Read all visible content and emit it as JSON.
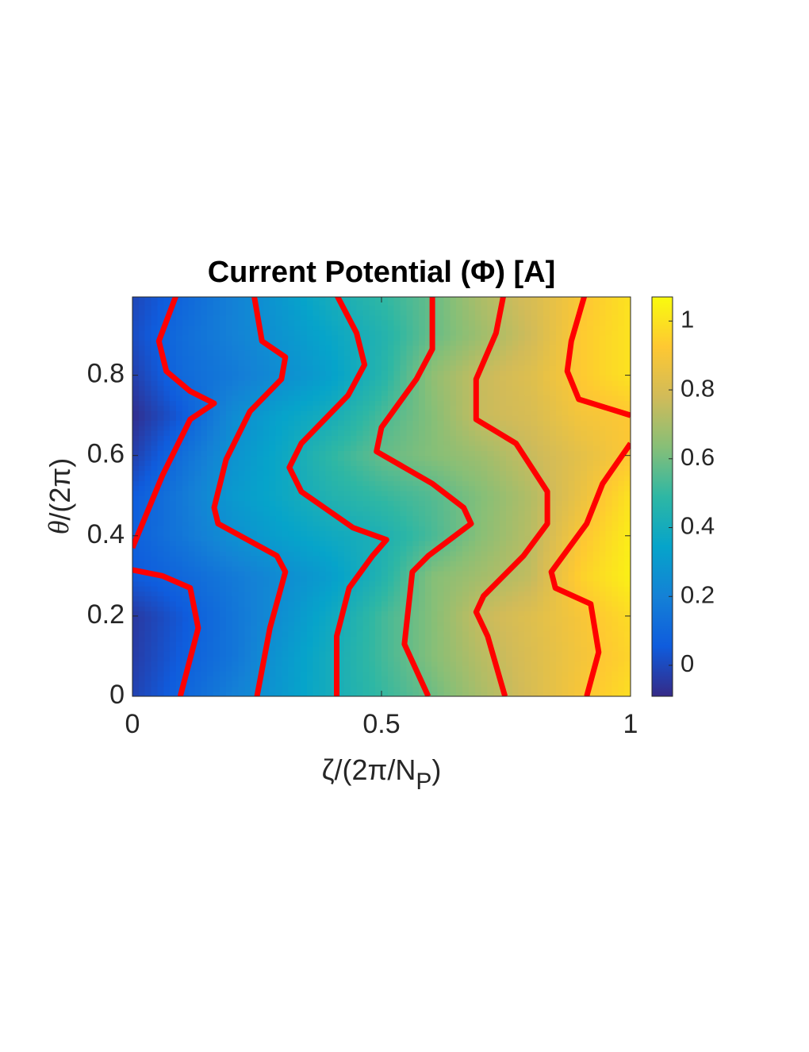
{
  "chart_data": {
    "type": "contour",
    "title": "Current Potential (Φ) [A]",
    "xlabel": [
      "ζ/(2π/N",
      "P",
      ")"
    ],
    "ylabel": [
      "θ",
      "/(2π)"
    ],
    "x": [
      0,
      0.1,
      0.2,
      0.3,
      0.4,
      0.5,
      0.6,
      0.7,
      0.8,
      0.9,
      1
    ],
    "y": [
      0,
      0.1,
      0.2,
      0.3,
      0.4,
      0.5,
      0.6,
      0.7,
      0.8,
      0.9,
      1
    ],
    "z": [
      [
        -0.02,
        0.087,
        0.196,
        0.3,
        0.407,
        0.5,
        0.59,
        0.7,
        0.8,
        0.905,
        0.99
      ],
      [
        -0.04,
        0.06,
        0.15,
        0.29,
        0.405,
        0.52,
        0.63,
        0.73,
        0.81,
        0.89,
        0.96
      ],
      [
        -0.05,
        0.045,
        0.15,
        0.26,
        0.38,
        0.52,
        0.63,
        0.76,
        0.82,
        0.9,
        0.98
      ],
      [
        0.05,
        0.1,
        0.17,
        0.245,
        0.32,
        0.45,
        0.63,
        0.69,
        0.75,
        0.95,
        1.04
      ],
      [
        0.07,
        0.16,
        0.26,
        0.33,
        0.38,
        0.43,
        0.53,
        0.64,
        0.73,
        0.91,
        1.03
      ],
      [
        0.05,
        0.17,
        0.3,
        0.37,
        0.45,
        0.5,
        0.55,
        0.63,
        0.72,
        0.86,
        1.0
      ],
      [
        -0.03,
        0.13,
        0.27,
        0.37,
        0.49,
        0.58,
        0.63,
        0.68,
        0.76,
        0.84,
        0.92
      ],
      [
        -0.08,
        0.05,
        0.24,
        0.34,
        0.41,
        0.53,
        0.63,
        0.76,
        0.8,
        0.89,
        0.92
      ],
      [
        -0.03,
        0.11,
        0.17,
        0.25,
        0.33,
        0.46,
        0.65,
        0.76,
        0.82,
        0.93,
        1.0
      ],
      [
        0.01,
        0.12,
        0.2,
        0.28,
        0.36,
        0.45,
        0.58,
        0.68,
        0.78,
        0.93,
        1.0
      ],
      [
        -0.01,
        0.09,
        0.2,
        0.3,
        0.41,
        0.49,
        0.58,
        0.71,
        0.8,
        0.91,
        1.0
      ]
    ],
    "colormap": [
      "#352a87",
      "#0f5cdd",
      "#1481d6",
      "#06a4ca",
      "#2eb7a4",
      "#87bf77",
      "#d1bb59",
      "#fec832",
      "#f9fb0e"
    ],
    "contour_color": "#ff0000",
    "contours": [
      {
        "x": [
          0.096,
          0.132,
          0.116,
          0.06,
          0
        ],
        "y": [
          0,
          0.17,
          0.27,
          0.3,
          0.315
        ]
      },
      {
        "x": [
          0,
          0.06,
          0.116,
          0.164,
          0.116,
          0.068,
          0.053,
          0.088
        ],
        "y": [
          0.37,
          0.55,
          0.69,
          0.73,
          0.76,
          0.81,
          0.885,
          1.0
        ]
      },
      {
        "x": [
          0.25,
          0.276,
          0.307,
          0.29,
          0.172,
          0.164,
          0.188,
          0.236,
          0.299,
          0.307,
          0.26,
          0.244
        ],
        "y": [
          0,
          0.17,
          0.31,
          0.35,
          0.43,
          0.47,
          0.59,
          0.71,
          0.79,
          0.845,
          0.885,
          1.0
        ]
      },
      {
        "x": [
          0.41,
          0.41,
          0.435,
          0.482,
          0.51,
          0.443,
          0.339,
          0.315,
          0.339,
          0.433,
          0.466,
          0.45,
          0.41
        ],
        "y": [
          0,
          0.15,
          0.27,
          0.35,
          0.39,
          0.42,
          0.51,
          0.57,
          0.63,
          0.75,
          0.826,
          0.905,
          1.0
        ]
      },
      {
        "x": [
          0.594,
          0.546,
          0.562,
          0.594,
          0.68,
          0.665,
          0.602,
          0.49,
          0.5,
          0.57,
          0.602,
          0.602
        ],
        "y": [
          0,
          0.13,
          0.31,
          0.35,
          0.43,
          0.47,
          0.53,
          0.61,
          0.67,
          0.79,
          0.865,
          1.0
        ]
      },
      {
        "x": [
          0.748,
          0.713,
          0.69,
          0.705,
          0.785,
          0.833,
          0.833,
          0.77,
          0.69,
          0.69,
          0.73,
          0.745
        ],
        "y": [
          0,
          0.15,
          0.21,
          0.25,
          0.35,
          0.43,
          0.51,
          0.63,
          0.69,
          0.79,
          0.905,
          1.0
        ]
      },
      {
        "x": [
          0.912,
          0.936,
          0.92,
          0.849,
          0.841,
          0.912,
          0.944,
          1
        ],
        "y": [
          0,
          0.11,
          0.23,
          0.27,
          0.31,
          0.43,
          0.53,
          0.63
        ]
      },
      {
        "x": [
          1,
          0.896,
          0.873,
          0.881,
          0.908
        ],
        "y": [
          0.7,
          0.74,
          0.81,
          0.885,
          1.0
        ]
      }
    ],
    "xlim": [
      0,
      1
    ],
    "ylim": [
      0,
      0.995
    ],
    "xticks": [
      0,
      0.5,
      1
    ],
    "yticks": [
      0,
      0.2,
      0.4,
      0.6,
      0.8
    ],
    "clim": [
      -0.09,
      1.07
    ],
    "cticks": [
      0,
      0.2,
      0.4,
      0.6,
      0.8,
      1
    ]
  }
}
